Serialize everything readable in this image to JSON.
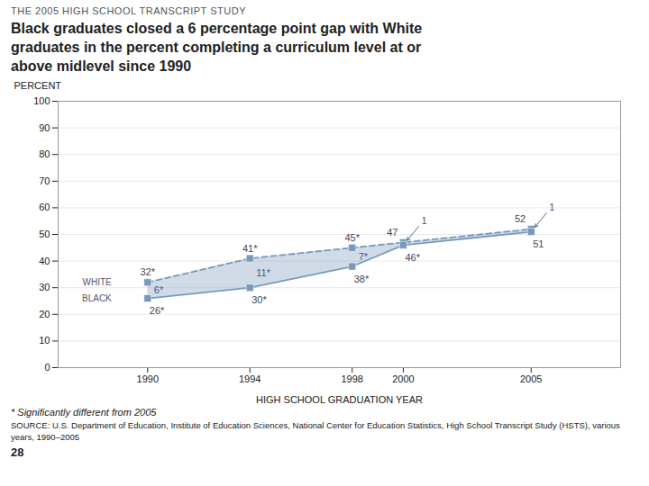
{
  "chart_data": {
    "type": "line",
    "header": "THE 2005 HIGH SCHOOL TRANSCRIPT STUDY",
    "title": "Black graduates closed a 6 percentage point gap with White\ngraduates in the percent completing a curriculum level at or\nabove midlevel since 1990",
    "x": [
      1990,
      1994,
      1998,
      2000,
      2005
    ],
    "series": [
      {
        "name": "WHITE",
        "color": "#7799bb",
        "line_style": "dashed",
        "marker": "square",
        "values": [
          32,
          41,
          45,
          47,
          52
        ],
        "value_labels": [
          "32*",
          "41*",
          "45*",
          "47",
          "52"
        ]
      },
      {
        "name": "BLACK",
        "color": "#7799bb",
        "line_style": "solid",
        "marker": "square",
        "values": [
          26,
          30,
          38,
          46,
          51
        ],
        "value_labels": [
          "26*",
          "30*",
          "38*",
          "46*",
          "51"
        ]
      }
    ],
    "annotations": [
      {
        "x": 1990,
        "text": "6*"
      },
      {
        "x": 1994,
        "text": "11*"
      },
      {
        "x": 1998,
        "text": "7*"
      },
      {
        "x": 2000,
        "text": "1"
      },
      {
        "x": 2005,
        "text": "1"
      }
    ],
    "xlabel": "HIGH SCHOOL GRADUATION YEAR",
    "ylabel": "PERCENT",
    "xlim": [
      1986.5,
      2008.5
    ],
    "xticks": [
      1990,
      1994,
      1998,
      2000,
      2005
    ],
    "ylim": [
      0,
      100
    ],
    "yticks": [
      0,
      10,
      20,
      30,
      40,
      50,
      60,
      70,
      80,
      90,
      100
    ],
    "grid": true,
    "data_labels": true,
    "footnote": "* Significantly different from 2005",
    "source": "SOURCE: U.S. Department of Education, Institute of Education Sciences, National Center for Education Statistics, High School Transcript Study (HSTS), various years, 1990–2005",
    "page_number": "28"
  }
}
